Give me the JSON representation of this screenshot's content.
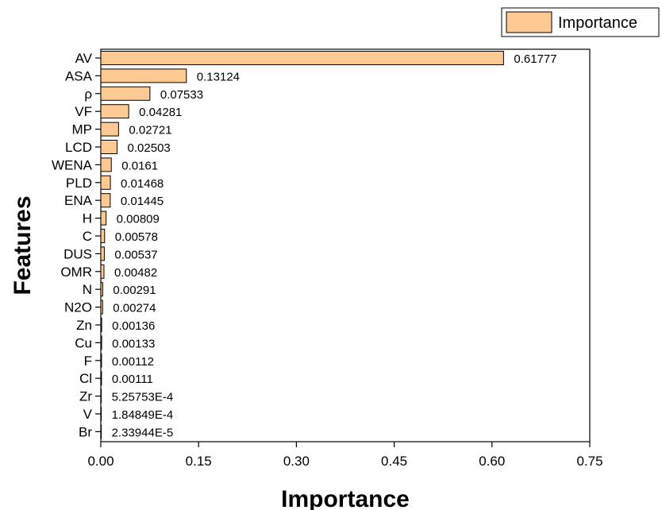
{
  "chart_data": {
    "type": "bar",
    "orientation": "horizontal",
    "xlabel": "Importance",
    "ylabel": "Features",
    "xlim": [
      0,
      0.75
    ],
    "x_ticks": [
      "0.00",
      "0.15",
      "0.30",
      "0.45",
      "0.60",
      "0.75"
    ],
    "grid": false,
    "legend_position": "top-right",
    "series": [
      {
        "name": "Importance",
        "color": "#FFC993",
        "categories": [
          "AV",
          "ASA",
          "ρ",
          "VF",
          "MP",
          "LCD",
          "WENA",
          "PLD",
          "ENA",
          "H",
          "C",
          "DUS",
          "OMR",
          "N",
          "N2O",
          "Zn",
          "Cu",
          "F",
          "Cl",
          "Zr",
          "V",
          "Br"
        ],
        "values": [
          0.61777,
          0.13124,
          0.07533,
          0.04281,
          0.02721,
          0.02503,
          0.0161,
          0.01468,
          0.01445,
          0.00809,
          0.00578,
          0.00537,
          0.00482,
          0.00291,
          0.00274,
          0.00136,
          0.00133,
          0.00112,
          0.00111,
          0.000525753,
          0.000184849,
          2.33944e-05
        ],
        "value_labels": [
          "0.61777",
          "0.13124",
          "0.07533",
          "0.04281",
          "0.02721",
          "0.02503",
          "0.0161",
          "0.01468",
          "0.01445",
          "0.00809",
          "0.00578",
          "0.00537",
          "0.00482",
          "0.00291",
          "0.00274",
          "0.00136",
          "0.00133",
          "0.00112",
          "0.00111",
          "5.25753E-4",
          "1.84849E-4",
          "2.33944E-5"
        ]
      }
    ]
  }
}
